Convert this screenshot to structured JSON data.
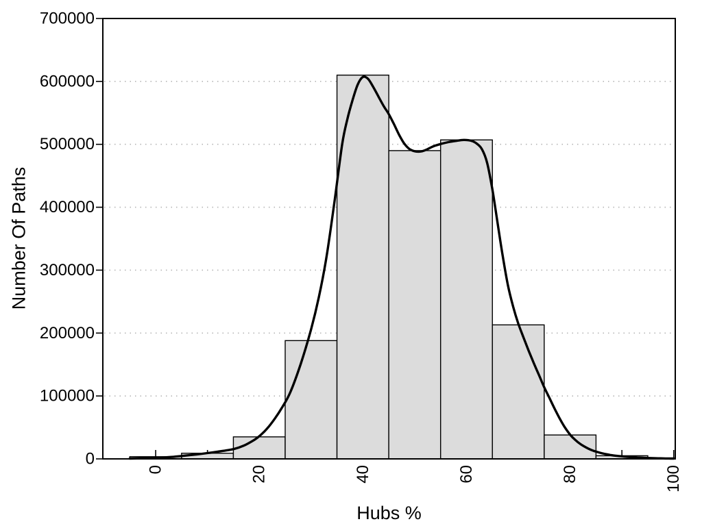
{
  "chart_data": {
    "type": "bar",
    "subtype": "histogram with density curve overlay",
    "title": "",
    "xlabel": "Hubs %",
    "ylabel": "Number Of Paths",
    "xlim": [
      -10.2,
      100.3
    ],
    "ylim": [
      0,
      700000
    ],
    "grid": {
      "horizontal": true,
      "style": "dotted",
      "at": [
        100000,
        200000,
        300000,
        400000,
        500000,
        600000
      ]
    },
    "legend": null,
    "x_axis": {
      "tick_step_minor": 10,
      "tick_values": [
        0,
        10,
        20,
        30,
        40,
        50,
        60,
        70,
        80,
        90,
        100
      ],
      "label_values": [
        0,
        20,
        40,
        60,
        80,
        100
      ],
      "labels": [
        "0",
        "20",
        "40",
        "60",
        "80",
        "100"
      ],
      "label_rotation_deg": -90,
      "ticks_inside": true
    },
    "y_axis": {
      "tick_values": [
        0,
        100000,
        200000,
        300000,
        400000,
        500000,
        600000,
        700000
      ],
      "labels": [
        "0",
        "100000",
        "200000",
        "300000",
        "400000",
        "500000",
        "600000",
        "700000"
      ],
      "ticks_inside": false
    },
    "histogram": {
      "bin_width": 10,
      "bin_centers": [
        0,
        10,
        20,
        30,
        40,
        50,
        60,
        70,
        80,
        90
      ],
      "values": [
        3500,
        9000,
        35000,
        188000,
        610000,
        490000,
        507000,
        213000,
        38000,
        5000
      ]
    },
    "density_curve": {
      "points": [
        [
          -5,
          400
        ],
        [
          0,
          1600
        ],
        [
          3,
          3000
        ],
        [
          5,
          4600
        ],
        [
          8,
          7200
        ],
        [
          10,
          9200
        ],
        [
          12,
          11500
        ],
        [
          15,
          15500
        ],
        [
          17,
          21000
        ],
        [
          19,
          30000
        ],
        [
          20,
          36000
        ],
        [
          21.5,
          48000
        ],
        [
          23,
          64000
        ],
        [
          24.5,
          83000
        ],
        [
          26,
          106000
        ],
        [
          28,
          151000
        ],
        [
          30,
          206000
        ],
        [
          31.5,
          257000
        ],
        [
          33,
          322000
        ],
        [
          34.5,
          408000
        ],
        [
          36,
          500000
        ],
        [
          37,
          540000
        ],
        [
          38,
          570000
        ],
        [
          39,
          595000
        ],
        [
          40,
          607000
        ],
        [
          41,
          604000
        ],
        [
          42,
          591000
        ],
        [
          43,
          576000
        ],
        [
          44,
          561000
        ],
        [
          45,
          548000
        ],
        [
          46,
          532000
        ],
        [
          47,
          515000
        ],
        [
          48,
          501000
        ],
        [
          49,
          492500
        ],
        [
          50,
          489000
        ],
        [
          51,
          488500
        ],
        [
          52,
          490500
        ],
        [
          53.5,
          496500
        ],
        [
          55,
          500500
        ],
        [
          56.5,
          503500
        ],
        [
          58,
          505500
        ],
        [
          59.5,
          507000
        ],
        [
          61,
          505500
        ],
        [
          62,
          501000
        ],
        [
          63,
          492000
        ],
        [
          64,
          470000
        ],
        [
          65,
          428000
        ],
        [
          66,
          375000
        ],
        [
          67,
          322000
        ],
        [
          68,
          276000
        ],
        [
          69,
          242000
        ],
        [
          70,
          215000
        ],
        [
          71,
          193000
        ],
        [
          72,
          172000
        ],
        [
          73,
          152000
        ],
        [
          74,
          133000
        ],
        [
          75,
          114000
        ],
        [
          76,
          97000
        ],
        [
          77,
          80000
        ],
        [
          78,
          64000
        ],
        [
          79,
          50000
        ],
        [
          80,
          38500
        ],
        [
          81,
          30000
        ],
        [
          82,
          23500
        ],
        [
          83,
          18500
        ],
        [
          84,
          14500
        ],
        [
          85,
          11500
        ],
        [
          86,
          9200
        ],
        [
          87,
          7400
        ],
        [
          88,
          5900
        ],
        [
          89,
          4800
        ],
        [
          90,
          4000
        ],
        [
          91,
          3300
        ],
        [
          92,
          2700
        ],
        [
          93,
          2200
        ],
        [
          94,
          1800
        ],
        [
          95,
          1400
        ],
        [
          96,
          1100
        ],
        [
          97,
          900
        ],
        [
          98,
          750
        ],
        [
          99,
          620
        ],
        [
          100,
          520
        ]
      ]
    },
    "colors": {
      "background": "#ffffff",
      "bar_fill": "#dcdcdc",
      "bar_stroke": "#000000",
      "curve": "#000000",
      "grid": "#b4b4b4",
      "axis": "#000000",
      "text": "#000000"
    }
  }
}
